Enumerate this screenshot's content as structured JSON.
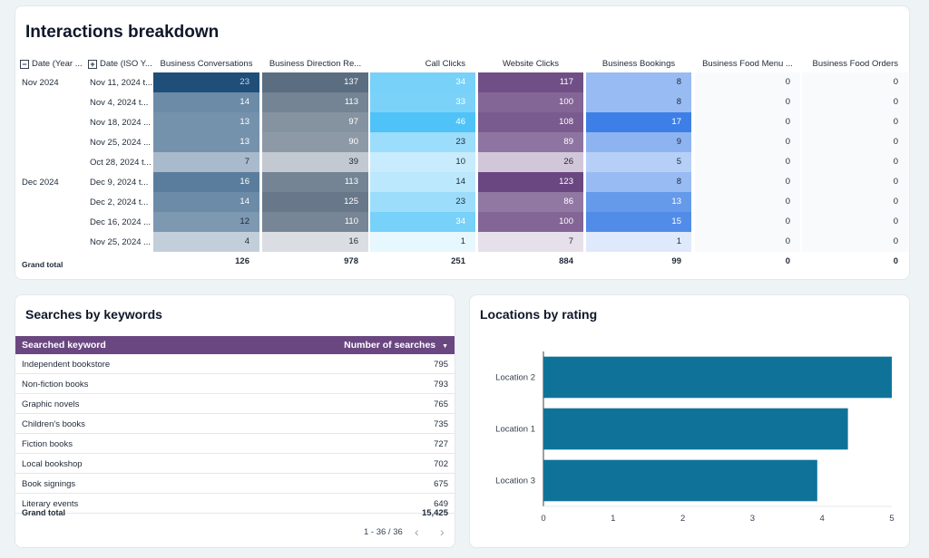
{
  "interactions": {
    "title": "Interactions breakdown",
    "columns": {
      "year_month": "Date (Year ...",
      "iso_week": "Date (ISO Y...",
      "metrics": [
        "Business Conversations",
        "Business Direction Re...",
        "Call Clicks",
        "Website Clicks",
        "Business Bookings",
        "Business Food Menu ...",
        "Business Food Orders"
      ]
    },
    "collapse_symbol": "−",
    "expand_symbol": "+",
    "groups": [
      {
        "label": "Nov 2024"
      },
      {
        "label": "Dec 2024"
      }
    ],
    "rows": [
      {
        "week": "Nov 11, 2024 t...",
        "values": [
          "23",
          "137",
          "34",
          "117",
          "8",
          "0",
          "0"
        ]
      },
      {
        "week": "Nov 4, 2024 t...",
        "values": [
          "14",
          "113",
          "33",
          "100",
          "8",
          "0",
          "0"
        ]
      },
      {
        "week": "Nov 18, 2024 ...",
        "values": [
          "13",
          "97",
          "46",
          "108",
          "17",
          "0",
          "0"
        ]
      },
      {
        "week": "Nov 25, 2024 ...",
        "values": [
          "13",
          "90",
          "23",
          "89",
          "9",
          "0",
          "0"
        ]
      },
      {
        "week": "Oct 28, 2024 t...",
        "values": [
          "7",
          "39",
          "10",
          "26",
          "5",
          "0",
          "0"
        ]
      },
      {
        "week": "Dec 9, 2024 t...",
        "values": [
          "16",
          "113",
          "14",
          "123",
          "8",
          "0",
          "0"
        ]
      },
      {
        "week": "Dec 2, 2024 t...",
        "values": [
          "14",
          "125",
          "23",
          "86",
          "13",
          "0",
          "0"
        ]
      },
      {
        "week": "Dec 16, 2024 ...",
        "values": [
          "12",
          "110",
          "34",
          "100",
          "15",
          "0",
          "0"
        ]
      },
      {
        "week": "Nov 25, 2024 ...",
        "values": [
          "4",
          "16",
          "1",
          "7",
          "1",
          "0",
          "0"
        ]
      }
    ],
    "grand_total_label": "Grand total",
    "grand_totals": [
      "126",
      "978",
      "251",
      "884",
      "99",
      "0",
      "0"
    ],
    "heat_colors": [
      "#1f4e79",
      "#5b6d80",
      "#4fc3f7",
      "#6a4781",
      "#3d7fe6",
      "#ffffff",
      "#ffffff"
    ]
  },
  "keywords": {
    "title": "Searches by keywords",
    "col_keyword": "Searched keyword",
    "col_count": "Number of searches",
    "sort_icon": "▼",
    "rows": [
      {
        "keyword": "Independent bookstore",
        "count": "795"
      },
      {
        "keyword": "Non-fiction books",
        "count": "793"
      },
      {
        "keyword": "Graphic novels",
        "count": "765"
      },
      {
        "keyword": "Children's books",
        "count": "735"
      },
      {
        "keyword": "Fiction books",
        "count": "727"
      },
      {
        "keyword": "Local bookshop",
        "count": "702"
      },
      {
        "keyword": "Book signings",
        "count": "675"
      },
      {
        "keyword": "Literary events",
        "count": "649"
      }
    ],
    "total_label": "Grand total",
    "total_value": "15,425",
    "pagination": "1 - 36 / 36",
    "prev_icon": "‹",
    "next_icon": "›",
    "header_color": "#6a4781"
  },
  "locations": {
    "title": "Locations by rating",
    "bar_color": "#0f7399"
  },
  "chart_data": {
    "type": "bar",
    "orientation": "horizontal",
    "title": "Locations by rating",
    "categories": [
      "Location 2",
      "Location 1",
      "Location 3"
    ],
    "values": [
      5.0,
      4.37,
      3.93
    ],
    "xlim": [
      0,
      5
    ],
    "xticks": [
      "0",
      "1",
      "2",
      "3",
      "4",
      "5"
    ],
    "xlabel": "",
    "ylabel": "",
    "grid": false
  }
}
